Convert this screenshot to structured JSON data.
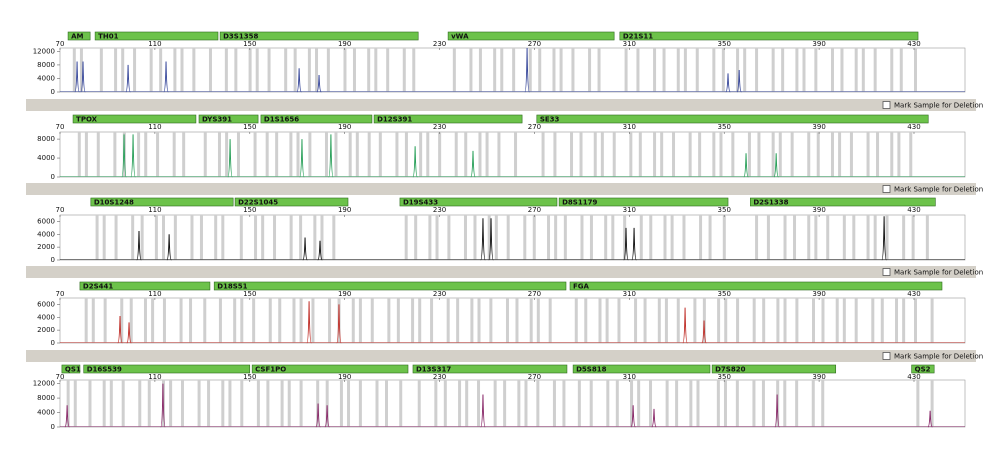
{
  "panels": [
    {
      "color": "#3a4a9c",
      "xlim": [
        70,
        451.5
      ],
      "xticks": [
        70,
        110,
        150,
        190,
        230,
        270,
        310,
        350,
        390,
        430
      ],
      "ylim": [
        0,
        13000
      ],
      "yticks": [
        0,
        4000,
        8000,
        12000
      ],
      "markers": [
        {
          "name": "AM",
          "start": 73.4,
          "end": 82.7
        },
        {
          "name": "TH01",
          "start": 84.8,
          "end": 136.6
        },
        {
          "name": "D3S1358",
          "start": 137.5,
          "end": 221
        },
        {
          "name": "vWA",
          "start": 233.6,
          "end": 303.6
        },
        {
          "name": "D21S11",
          "start": 306,
          "end": 431.7
        }
      ],
      "peaks": {
        "x": [
          77.2,
          79.7,
          98.7,
          114.7,
          170.8,
          179.2,
          266.9,
          351.6,
          356.3
        ],
        "values": [
          9000,
          9000,
          8000,
          9000,
          7000,
          5000,
          13000,
          5500,
          6500
        ]
      }
    },
    {
      "color": "#2aa05a",
      "xlim": [
        70,
        451.5
      ],
      "xticks": [
        70,
        110,
        150,
        190,
        230,
        270,
        310,
        350,
        390,
        430
      ],
      "ylim": [
        0,
        9500
      ],
      "yticks": [
        0,
        4000,
        8000
      ],
      "markers": [
        {
          "name": "TPOX",
          "start": 75.5,
          "end": 127.3
        },
        {
          "name": "DYS391",
          "start": 128.6,
          "end": 153.5
        },
        {
          "name": "D1S1656",
          "start": 154.7,
          "end": 201.5
        },
        {
          "name": "D12S391",
          "start": 202.4,
          "end": 264.8
        },
        {
          "name": "SE33",
          "start": 271,
          "end": 436
        }
      ],
      "peaks": {
        "x": [
          97,
          100.8,
          141.7,
          172,
          184.2,
          219.7,
          244.1,
          359.2,
          371.9
        ],
        "values": [
          9000,
          9000,
          8000,
          8000,
          9000,
          6500,
          5500,
          5000,
          5000
        ]
      }
    },
    {
      "color": "#111111",
      "xlim": [
        70,
        451.5
      ],
      "xticks": [
        70,
        110,
        150,
        190,
        230,
        270,
        310,
        350,
        390,
        430
      ],
      "ylim": [
        0,
        7000
      ],
      "yticks": [
        0,
        2000,
        4000,
        6000
      ],
      "markers": [
        {
          "name": "D10S1248",
          "start": 83,
          "end": 143
        },
        {
          "name": "D22S1045",
          "start": 143.8,
          "end": 191.4
        },
        {
          "name": "D19S433",
          "start": 213.3,
          "end": 279.5
        },
        {
          "name": "D8S1179",
          "start": 280.4,
          "end": 351.6
        },
        {
          "name": "D2S1338",
          "start": 361,
          "end": 439
        }
      ],
      "peaks": {
        "x": [
          103.3,
          116,
          173.3,
          179.6,
          248.3,
          251.7,
          308.6,
          312,
          417.4
        ],
        "values": [
          4500,
          4000,
          3500,
          3000,
          6500,
          6500,
          5000,
          5000,
          6800
        ]
      }
    },
    {
      "color": "#c0302a",
      "xlim": [
        70,
        451.5
      ],
      "xticks": [
        70,
        110,
        150,
        190,
        230,
        270,
        310,
        350,
        390,
        430
      ],
      "ylim": [
        0,
        7000
      ],
      "yticks": [
        0,
        2000,
        4000,
        6000
      ],
      "markers": [
        {
          "name": "D2S441",
          "start": 78.4,
          "end": 133.2
        },
        {
          "name": "D18S51",
          "start": 135,
          "end": 283.3
        },
        {
          "name": "FGA",
          "start": 285,
          "end": 441.8
        }
      ],
      "peaks": {
        "x": [
          95.3,
          99.1,
          175,
          187.6,
          333.5,
          341.5
        ],
        "values": [
          4200,
          3200,
          6500,
          6000,
          5500,
          3500
        ]
      }
    },
    {
      "color": "#8a2a6a",
      "xlim": [
        70,
        451.5
      ],
      "xticks": [
        70,
        110,
        150,
        190,
        230,
        270,
        310,
        350,
        390,
        430
      ],
      "ylim": [
        0,
        13000
      ],
      "yticks": [
        0,
        4000,
        8000,
        12000
      ],
      "markers": [
        {
          "name": "QS1",
          "start": 70.8,
          "end": 78.4
        },
        {
          "name": "D16S539",
          "start": 80,
          "end": 150
        },
        {
          "name": "CSF1PO",
          "start": 151,
          "end": 216.7
        },
        {
          "name": "D13S317",
          "start": 218.8,
          "end": 283.7
        },
        {
          "name": "D5S818",
          "start": 286.3,
          "end": 344
        },
        {
          "name": "D7S820",
          "start": 344.9,
          "end": 397
        },
        {
          "name": "QS2",
          "start": 429,
          "end": 438.5
        }
      ],
      "peaks": {
        "x": [
          73,
          113.4,
          178.8,
          182.6,
          248.3,
          311.6,
          320.4,
          372.3,
          436.8
        ],
        "values": [
          6000,
          12000,
          6500,
          6000,
          9000,
          6000,
          5000,
          9000,
          4500
        ]
      }
    }
  ],
  "deletion_labels": [
    "Mark Sample for Deletion",
    "Mark Sample for Deletion",
    "Mark Sample for Deletion",
    "Mark Sample for Deletion"
  ]
}
